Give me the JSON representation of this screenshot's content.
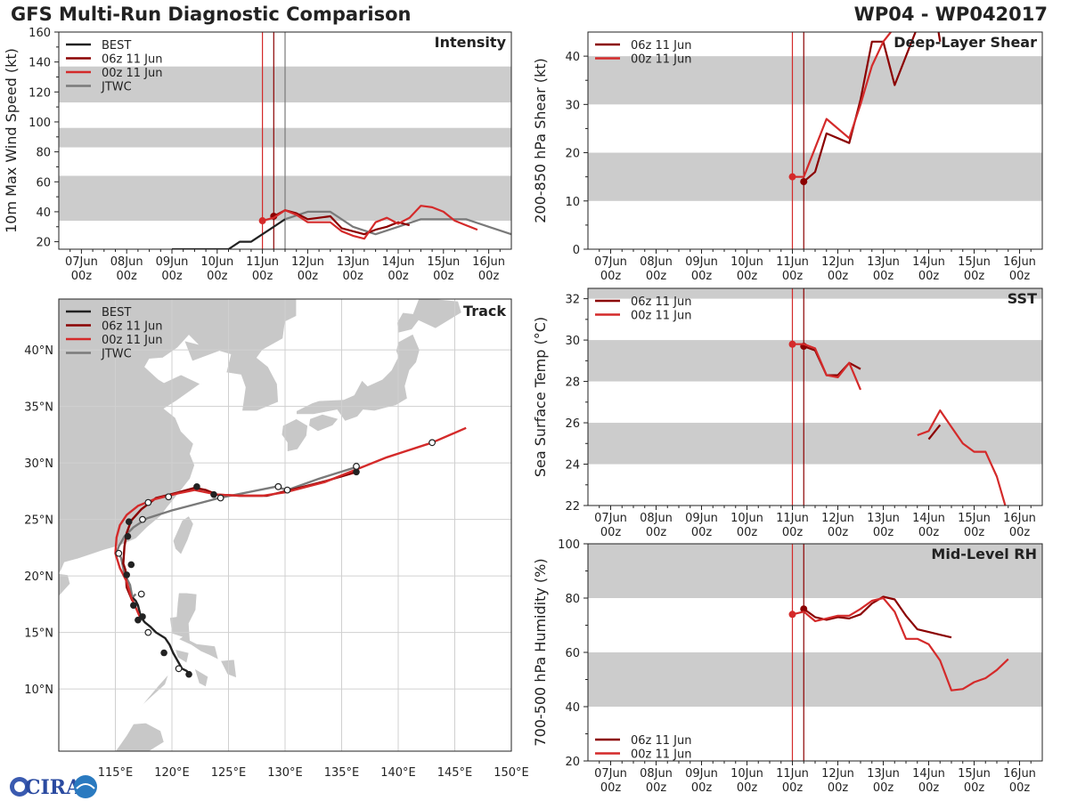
{
  "header": {
    "title": "GFS Multi-Run Diagnostic Comparison",
    "storm_id": "WP04 - WP042017"
  },
  "colors": {
    "best": "#222222",
    "run06": "#8b0000",
    "run00": "#d42a2a",
    "jtwc": "#7a7a7a",
    "band": "#cccccc",
    "land": "#c8c8c8",
    "grid": "#d0d0d0"
  },
  "time_axis": {
    "labels": [
      "07Jun\n00z",
      "08Jun\n00z",
      "09Jun\n00z",
      "10Jun\n00z",
      "11Jun\n00z",
      "12Jun\n00z",
      "13Jun\n00z",
      "14Jun\n00z",
      "15Jun\n00z",
      "16Jun\n00z"
    ],
    "start_day": 6.5,
    "end_day": 16.5,
    "init_lines": [
      {
        "day": 11.0,
        "color": "run00"
      },
      {
        "day": 11.25,
        "color": "run06"
      },
      {
        "day": 11.5,
        "color": "jtwc"
      }
    ]
  },
  "chart_data": [
    {
      "id": "intensity",
      "type": "line",
      "title": "Intensity",
      "ylabel": "10m Max Wind Speed (kt)",
      "ylim": [
        15,
        160
      ],
      "yticks": [
        20,
        40,
        60,
        80,
        100,
        120,
        140,
        160
      ],
      "bands": [
        [
          34,
          64
        ],
        [
          83,
          96
        ],
        [
          113,
          137
        ]
      ],
      "legend": [
        "BEST",
        "06z 11 Jun",
        "00z 11 Jun",
        "JTWC"
      ],
      "series": [
        {
          "name": "BEST",
          "color": "best",
          "x": [
            9,
            9.25,
            9.5,
            9.75,
            10,
            10.25,
            10.5,
            10.75,
            11,
            11.25,
            11.5
          ],
          "y": [
            15,
            15,
            15,
            15,
            15,
            15,
            20,
            20,
            25,
            30,
            35
          ],
          "start_marker": false
        },
        {
          "name": "JTWC",
          "color": "jtwc",
          "x": [
            11.5,
            12,
            12.5,
            13,
            13.5,
            14,
            14.5,
            15,
            15.5,
            16,
            16.5
          ],
          "y": [
            35,
            40,
            40,
            30,
            25,
            30,
            35,
            35,
            35,
            30,
            25
          ],
          "start_marker": false
        },
        {
          "name": "06z 11 Jun",
          "color": "run06",
          "x": [
            11.25,
            11.5,
            11.75,
            12,
            12.25,
            12.5,
            12.75,
            13,
            13.25,
            13.5,
            13.75,
            14,
            14.25
          ],
          "y": [
            37,
            41,
            39,
            35,
            36,
            37,
            29,
            27,
            25,
            28,
            30,
            33,
            31
          ],
          "start_marker": true
        },
        {
          "name": "00z 11 Jun",
          "color": "run00",
          "x": [
            11,
            11.25,
            11.5,
            11.75,
            12,
            12.25,
            12.5,
            12.75,
            13,
            13.25,
            13.5,
            13.75,
            14,
            14.25,
            14.5,
            14.75,
            15,
            15.25,
            15.5,
            15.75
          ],
          "y": [
            34,
            36,
            41,
            38,
            33,
            33,
            33,
            27,
            24,
            22,
            33,
            36,
            32,
            36,
            44,
            43,
            40,
            34,
            31,
            28
          ],
          "start_marker": true
        }
      ]
    },
    {
      "id": "shear",
      "type": "line",
      "title": "Deep-Layer Shear",
      "ylabel": "200-850 hPa Shear (kt)",
      "ylim": [
        0,
        45
      ],
      "yticks": [
        0,
        10,
        20,
        30,
        40
      ],
      "bands": [
        [
          10,
          20
        ],
        [
          30,
          40
        ]
      ],
      "legend": [
        "06z 11 Jun",
        "00z 11 Jun"
      ],
      "series": [
        {
          "name": "06z 11 Jun",
          "color": "run06",
          "x": [
            11.25,
            11.5,
            11.75,
            12.25,
            12.5,
            12.75,
            13,
            13.25,
            13.5,
            13.75
          ],
          "y": [
            14,
            16,
            24,
            22,
            31,
            43,
            43,
            34,
            40,
            46
          ],
          "start_marker": true
        },
        {
          "name": "00z 11 Jun",
          "color": "run00",
          "x": [
            11,
            11.25,
            11.75,
            12.25,
            12.5,
            12.75,
            13,
            13.25
          ],
          "y": [
            15,
            15,
            27,
            23,
            30,
            38,
            43,
            46
          ],
          "start_marker": true
        },
        {
          "name": "06z 11 Jun tail",
          "color": "run06",
          "x": [
            14.2,
            14.25
          ],
          "y": [
            46,
            43
          ],
          "start_marker": false
        }
      ]
    },
    {
      "id": "sst",
      "type": "line",
      "title": "SST",
      "ylabel": "Sea Surface Temp (°C)",
      "ylim": [
        22,
        32.5
      ],
      "yticks": [
        22,
        24,
        26,
        28,
        30,
        32
      ],
      "bands": [
        [
          24,
          26
        ],
        [
          28,
          30
        ],
        [
          32,
          32.5
        ]
      ],
      "legend": [
        "06z 11 Jun",
        "00z 11 Jun"
      ],
      "series": [
        {
          "name": "06z 11 Jun",
          "color": "run06",
          "x": [
            11.25,
            11.5,
            11.75,
            12,
            12.25,
            12.5
          ],
          "y": [
            29.7,
            29.5,
            28.3,
            28.3,
            28.9,
            28.6
          ],
          "start_marker": true
        },
        {
          "name": "00z 11 Jun",
          "color": "run00",
          "x": [
            11,
            11.25,
            11.5,
            11.75,
            12,
            12.25,
            12.5
          ],
          "y": [
            29.8,
            29.8,
            29.6,
            28.3,
            28.2,
            28.9,
            27.6
          ],
          "start_marker": true
        },
        {
          "name": "06z 11 Jun late",
          "color": "run06",
          "x": [
            14,
            14.25
          ],
          "y": [
            25.2,
            25.9
          ],
          "start_marker": false
        },
        {
          "name": "00z 11 Jun late",
          "color": "run00",
          "x": [
            13.75,
            14,
            14.25,
            14.5,
            14.75,
            15,
            15.25,
            15.5,
            15.75
          ],
          "y": [
            25.4,
            25.6,
            26.6,
            25.8,
            25,
            24.6,
            24.6,
            23.4,
            21.5
          ],
          "start_marker": false
        }
      ]
    },
    {
      "id": "rh",
      "type": "line",
      "title": "Mid-Level RH",
      "ylabel": "700-500 hPa Humidity (%)",
      "ylim": [
        20,
        100
      ],
      "yticks": [
        20,
        40,
        60,
        80,
        100
      ],
      "bands": [
        [
          40,
          60
        ],
        [
          80,
          100
        ]
      ],
      "legend": [
        "06z 11 Jun",
        "00z 11 Jun"
      ],
      "legend_position": "bottom-left",
      "series": [
        {
          "name": "06z 11 Jun",
          "color": "run06",
          "x": [
            11.25,
            11.5,
            11.75,
            12,
            12.25,
            12.5,
            12.75,
            13,
            13.25,
            13.5,
            13.75,
            14,
            14.25,
            14.5
          ],
          "y": [
            76,
            73,
            72,
            73,
            72.5,
            74,
            78,
            80.5,
            79.5,
            73.5,
            68.5,
            67.5,
            66.5,
            65.5
          ],
          "start_marker": true
        },
        {
          "name": "00z 11 Jun",
          "color": "run00",
          "x": [
            11,
            11.25,
            11.5,
            11.75,
            12,
            12.25,
            12.5,
            12.75,
            13,
            13.25,
            13.5,
            13.75,
            14,
            14.25,
            14.5,
            14.75,
            15,
            15.25,
            15.5,
            15.75
          ],
          "y": [
            74,
            75,
            71.5,
            72.5,
            73.5,
            73.5,
            76,
            79,
            80,
            75,
            65,
            65,
            63,
            57,
            46,
            46.5,
            49,
            50.5,
            53.5,
            57.5
          ],
          "start_marker": true
        }
      ]
    },
    {
      "id": "track",
      "type": "map-track",
      "title": "Track",
      "lon_range": [
        110,
        150
      ],
      "lat_range": [
        4.5,
        44.5
      ],
      "lon_ticks": [
        115,
        120,
        125,
        130,
        135,
        140,
        145,
        150
      ],
      "lat_ticks": [
        10,
        15,
        20,
        25,
        30,
        35,
        40
      ],
      "lon_labels": [
        "115°E",
        "120°E",
        "125°E",
        "130°E",
        "135°E",
        "140°E",
        "145°E",
        "150°E"
      ],
      "lat_labels": [
        "10°N",
        "15°N",
        "20°N",
        "25°N",
        "30°N",
        "35°N",
        "40°N"
      ],
      "legend": [
        "BEST",
        "06z 11 Jun",
        "00z 11 Jun",
        "JTWC"
      ],
      "series": [
        {
          "name": "BEST",
          "color": "best",
          "lon": [
            121.6,
            121.3,
            120.9,
            120.5,
            120.1,
            119.8,
            119.4,
            118.6,
            118.1,
            117.6,
            117.3,
            117.2,
            117.1,
            117.0,
            116.8,
            116.5
          ],
          "lat": [
            11.3,
            11.6,
            11.8,
            12.5,
            13.2,
            13.9,
            14.5,
            15.0,
            15.5,
            15.9,
            16.3,
            16.6,
            17.0,
            17.4,
            17.8,
            18.1
          ],
          "filled": [
            true,
            false,
            false,
            false,
            true,
            false,
            false,
            false,
            false,
            true,
            false,
            false,
            false,
            false,
            false,
            false
          ]
        },
        {
          "name": "06z 11 Jun",
          "color": "run06",
          "lon": [
            116.5,
            116.0,
            115.9,
            115.7,
            115.8,
            116.0,
            116.4,
            117.3,
            118.6,
            120.6,
            122.0,
            123.0,
            124.0,
            126.0,
            128.4,
            130.5,
            133.6,
            136.3
          ],
          "lat": [
            17.8,
            19.0,
            20.5,
            21.1,
            22.6,
            23.8,
            24.9,
            25.9,
            26.9,
            27.4,
            27.8,
            27.6,
            27.2,
            27.1,
            27.1,
            27.6,
            28.4,
            29.2
          ],
          "filled": [
            true,
            false,
            false,
            true,
            false,
            true,
            true,
            false,
            false,
            false,
            true,
            false,
            true,
            false,
            false,
            false,
            false,
            true
          ]
        },
        {
          "name": "00z 11 Jun",
          "color": "run00",
          "lon": [
            117.2,
            116.8,
            116.4,
            116.0,
            115.4,
            115.0,
            115.1,
            115.4,
            116.0,
            117.0,
            118.5,
            120.5,
            122.0,
            124.0,
            126.0,
            128.0,
            130.0,
            133.5,
            136.0,
            139.0,
            143.0,
            146.0
          ],
          "lat": [
            16.3,
            17.2,
            18.1,
            19.5,
            20.7,
            22.0,
            23.4,
            24.5,
            25.4,
            26.2,
            26.8,
            27.3,
            27.6,
            27.2,
            27.1,
            27.1,
            27.4,
            28.3,
            29.3,
            30.5,
            31.8,
            33.1
          ],
          "filled": [
            true,
            false,
            false,
            false,
            false,
            false,
            false,
            false,
            false,
            false,
            false,
            false,
            false,
            false,
            false,
            false,
            false,
            false,
            false,
            false,
            false,
            false
          ]
        },
        {
          "name": "JTWC",
          "color": "jtwc",
          "lon": [
            116.8,
            116.5,
            116.3,
            115.8,
            115.5,
            115.3,
            115.2,
            115.3,
            115.8,
            116.6,
            117.8,
            120.0,
            124.2,
            129.2,
            130.2,
            133.0,
            136.2
          ],
          "lat": [
            18.4,
            18.1,
            19.2,
            20.2,
            21.6,
            22.0,
            22.3,
            22.6,
            23.5,
            24.3,
            25.1,
            25.8,
            26.9,
            27.9,
            27.6,
            28.6,
            29.6
          ],
          "filled": [
            false,
            true,
            false,
            false,
            false,
            false,
            false,
            false,
            false,
            false,
            false,
            false,
            false,
            false,
            false,
            false,
            false
          ],
          "hollow_idx": [
            0,
            4,
            5,
            7,
            10,
            12,
            13,
            14,
            16
          ]
        }
      ],
      "best_markers_filled_idx": [
        0,
        4,
        9
      ],
      "extra_open_markers": [
        {
          "lon": 120.6,
          "lat": 11.8
        },
        {
          "lon": 117.9,
          "lat": 15.0
        },
        {
          "lon": 117.9,
          "lat": 26.5
        },
        {
          "lon": 119.7,
          "lat": 27.0
        },
        {
          "lon": 124.3,
          "lat": 26.9
        },
        {
          "lon": 129.4,
          "lat": 27.9
        },
        {
          "lon": 130.2,
          "lat": 27.6
        },
        {
          "lon": 136.3,
          "lat": 29.7
        },
        {
          "lon": 143.0,
          "lat": 31.8
        },
        {
          "lon": 117.3,
          "lat": 18.4
        },
        {
          "lon": 117.4,
          "lat": 25.0
        },
        {
          "lon": 115.3,
          "lat": 22.0
        }
      ],
      "extra_filled_markers": [
        {
          "lon": 122.2,
          "lat": 27.9
        },
        {
          "lon": 123.7,
          "lat": 27.2
        },
        {
          "lon": 116.1,
          "lat": 23.5
        },
        {
          "lon": 116.2,
          "lat": 24.8
        },
        {
          "lon": 116.4,
          "lat": 21.0
        },
        {
          "lon": 116.0,
          "lat": 20.1
        },
        {
          "lon": 116.6,
          "lat": 17.4
        },
        {
          "lon": 117.4,
          "lat": 16.4
        },
        {
          "lon": 117.0,
          "lat": 16.1
        },
        {
          "lon": 119.3,
          "lat": 13.2
        },
        {
          "lon": 121.5,
          "lat": 11.3
        },
        {
          "lon": 136.3,
          "lat": 29.2
        }
      ]
    }
  ],
  "logo": {
    "text": "CIRA"
  }
}
